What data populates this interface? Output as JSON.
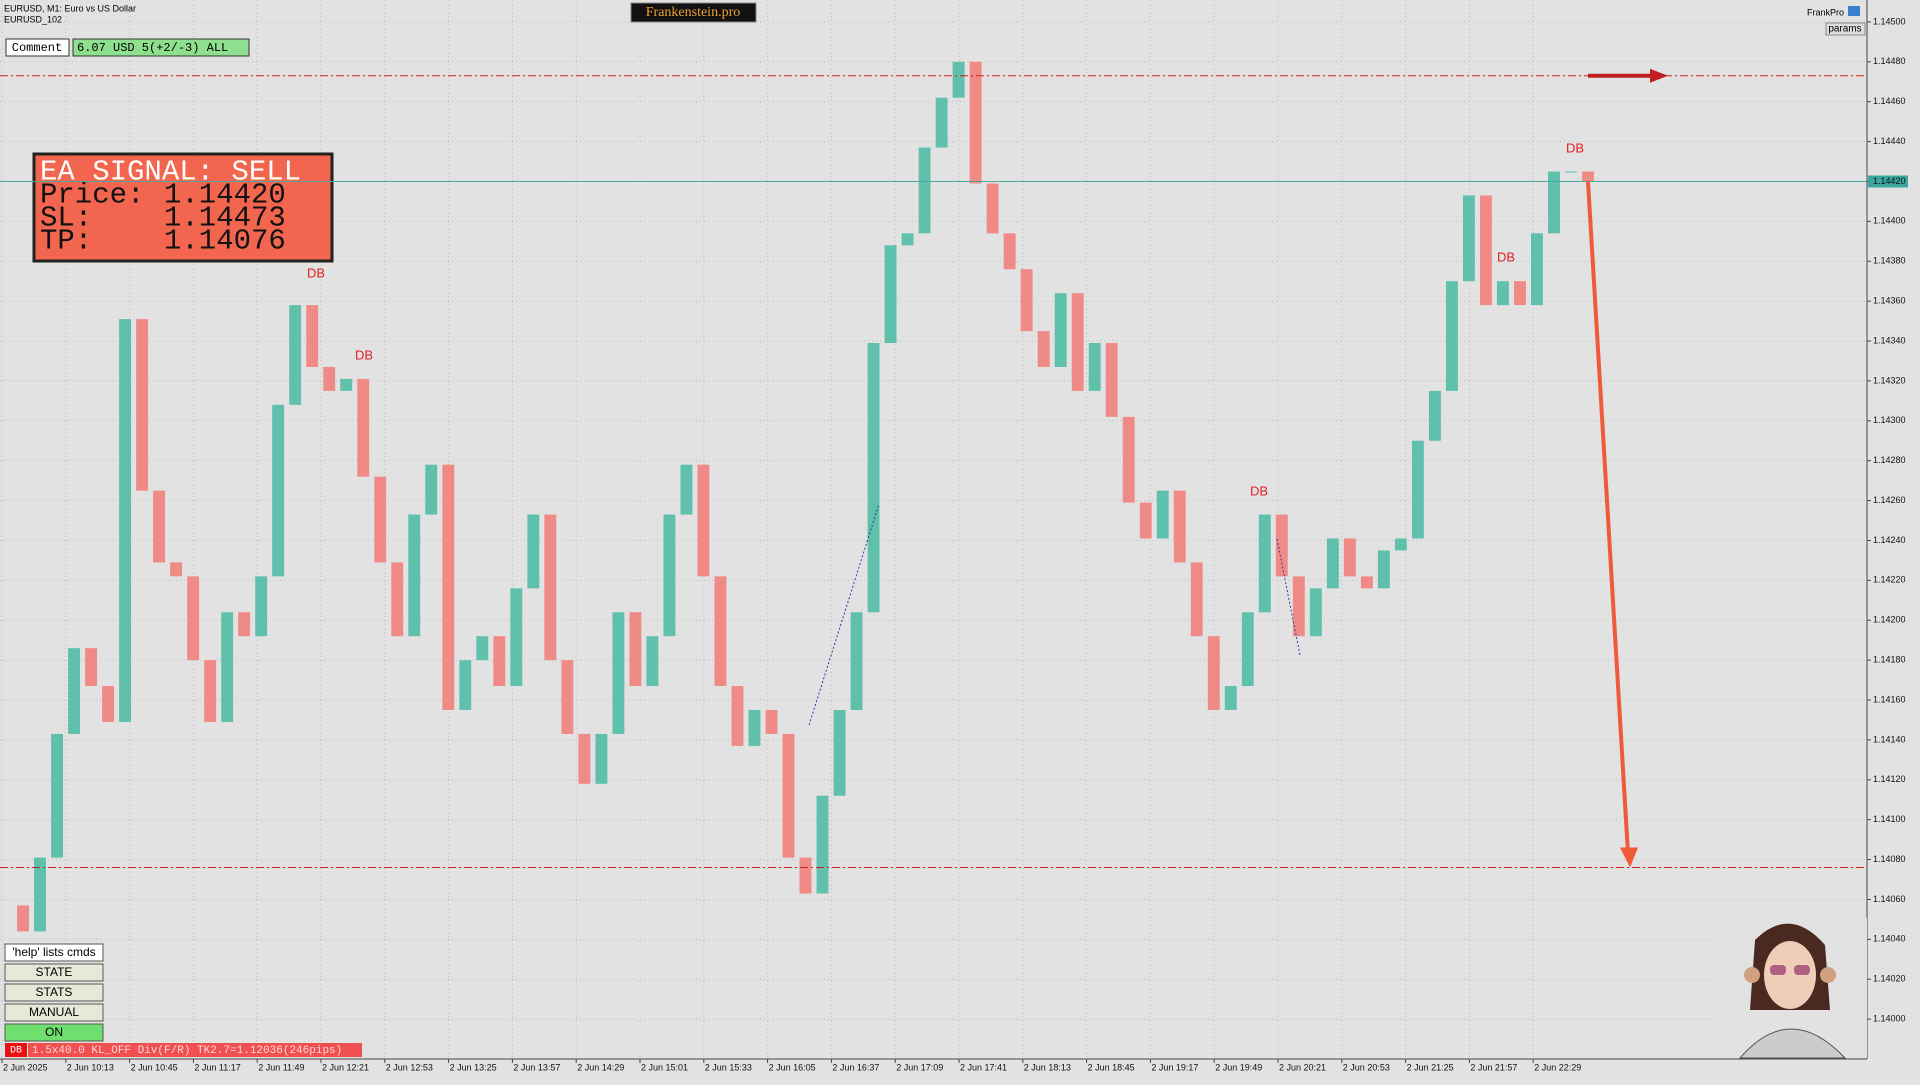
{
  "header": {
    "symbol": "EURUSD, M1:  Euro vs US Dollar",
    "account": "EURUSD_102",
    "badge": "Frankenstein.pro",
    "brand": "FrankPro",
    "params": "params"
  },
  "comment": {
    "label": "Comment",
    "text": "6.07 USD 5(+2/-3) ALL"
  },
  "signal": {
    "title": "EA SIGNAL: SELL",
    "price_label": "Price:",
    "price": {
      "value": 1.1442,
      "label": "1.14420"
    },
    "sl_label": "SL:",
    "sl": 1.14473,
    "tp_label": "TP:",
    "tp": 1.14076
  },
  "buttons": {
    "help": "'help' lists cmds",
    "items": [
      "STATE",
      "STATS",
      "MANUAL",
      "ON"
    ]
  },
  "status": {
    "tag": "DB",
    "text": "1.5x40.0 KL_OFF Div(F/R) TK2.7=1.12036(246pips)"
  },
  "chart_data": {
    "type": "candlestick",
    "grid": true,
    "up_color": "#5fc0ac",
    "down_color": "#f08a86",
    "ylim": [
      1.1398,
      1.14511
    ],
    "yticks": [
      {
        "value": 1.14,
        "label": "1.14000"
      },
      {
        "value": 1.1402,
        "label": "1.14020"
      },
      {
        "value": 1.1404,
        "label": "1.14040"
      },
      {
        "value": 1.1406,
        "label": "1.14060"
      },
      {
        "value": 1.1408,
        "label": "1.14080"
      },
      {
        "value": 1.141,
        "label": "1.14100"
      },
      {
        "value": 1.1412,
        "label": "1.14120"
      },
      {
        "value": 1.1414,
        "label": "1.14140"
      },
      {
        "value": 1.1416,
        "label": "1.14160"
      },
      {
        "value": 1.1418,
        "label": "1.14180"
      },
      {
        "value": 1.142,
        "label": "1.14200"
      },
      {
        "value": 1.1422,
        "label": "1.14220"
      },
      {
        "value": 1.1424,
        "label": "1.14240"
      },
      {
        "value": 1.1426,
        "label": "1.14260"
      },
      {
        "value": 1.1428,
        "label": "1.14280"
      },
      {
        "value": 1.143,
        "label": "1.14300"
      },
      {
        "value": 1.1432,
        "label": "1.14320"
      },
      {
        "value": 1.1434,
        "label": "1.14340"
      },
      {
        "value": 1.1436,
        "label": "1.14360"
      },
      {
        "value": 1.1438,
        "label": "1.14380"
      },
      {
        "value": 1.144,
        "label": "1.14400"
      },
      {
        "value": 1.1442,
        "label": "1.14420"
      },
      {
        "value": 1.1444,
        "label": "1.14440"
      },
      {
        "value": 1.1446,
        "label": "1.14460"
      },
      {
        "value": 1.1448,
        "label": "1.14480"
      },
      {
        "value": 1.145,
        "label": "1.14500"
      }
    ],
    "x_labels": [
      "2 Jun 2025",
      "2 Jun 10:13",
      "2 Jun 10:45",
      "2 Jun 11:17",
      "2 Jun 11:49",
      "2 Jun 12:21",
      "2 Jun 12:53",
      "2 Jun 13:25",
      "2 Jun 13:57",
      "2 Jun 14:29",
      "2 Jun 15:01",
      "2 Jun 15:33",
      "2 Jun 16:05",
      "2 Jun 16:37",
      "2 Jun 17:09",
      "2 Jun 17:41",
      "2 Jun 18:13",
      "2 Jun 18:45",
      "2 Jun 19:17",
      "2 Jun 19:49",
      "2 Jun 20:21",
      "2 Jun 20:53",
      "2 Jun 21:25",
      "2 Jun 21:57",
      "2 Jun 22:29"
    ],
    "values": [
      1.14057,
      1.14044,
      1.14081,
      1.14143,
      1.14186,
      1.14167,
      1.14149,
      1.14351,
      1.14265,
      1.14229,
      1.14222,
      1.1418,
      1.14149,
      1.14204,
      1.14192,
      1.14222,
      1.14308,
      1.14358,
      1.14327,
      1.14315,
      1.14321,
      1.14272,
      1.14229,
      1.14192,
      1.14253,
      1.14278,
      1.14155,
      1.1418,
      1.14192,
      1.14167,
      1.14216,
      1.14253,
      1.1418,
      1.14143,
      1.14118,
      1.14143,
      1.14204,
      1.14167,
      1.14192,
      1.14253,
      1.14278,
      1.14222,
      1.14167,
      1.14137,
      1.14155,
      1.14143,
      1.14081,
      1.14063,
      1.14112,
      1.14155,
      1.14204,
      1.14339,
      1.14388,
      1.14394,
      1.14437,
      1.14462,
      1.1448,
      1.14419,
      1.14394,
      1.14376,
      1.14345,
      1.14327,
      1.14364,
      1.14315,
      1.14339,
      1.14302,
      1.14259,
      1.14241,
      1.14265,
      1.14229,
      1.14192,
      1.14155,
      1.14167,
      1.14204,
      1.14253,
      1.14222,
      1.14192,
      1.14216,
      1.14241,
      1.14222,
      1.14216,
      1.14235,
      1.14241,
      1.1429,
      1.14315,
      1.1437,
      1.14413,
      1.14358,
      1.1437,
      1.14358,
      1.14394,
      1.14425,
      1.14425,
      1.1442
    ],
    "annotations": [
      "DB",
      "DB",
      "DB",
      "DB",
      "DB"
    ]
  }
}
